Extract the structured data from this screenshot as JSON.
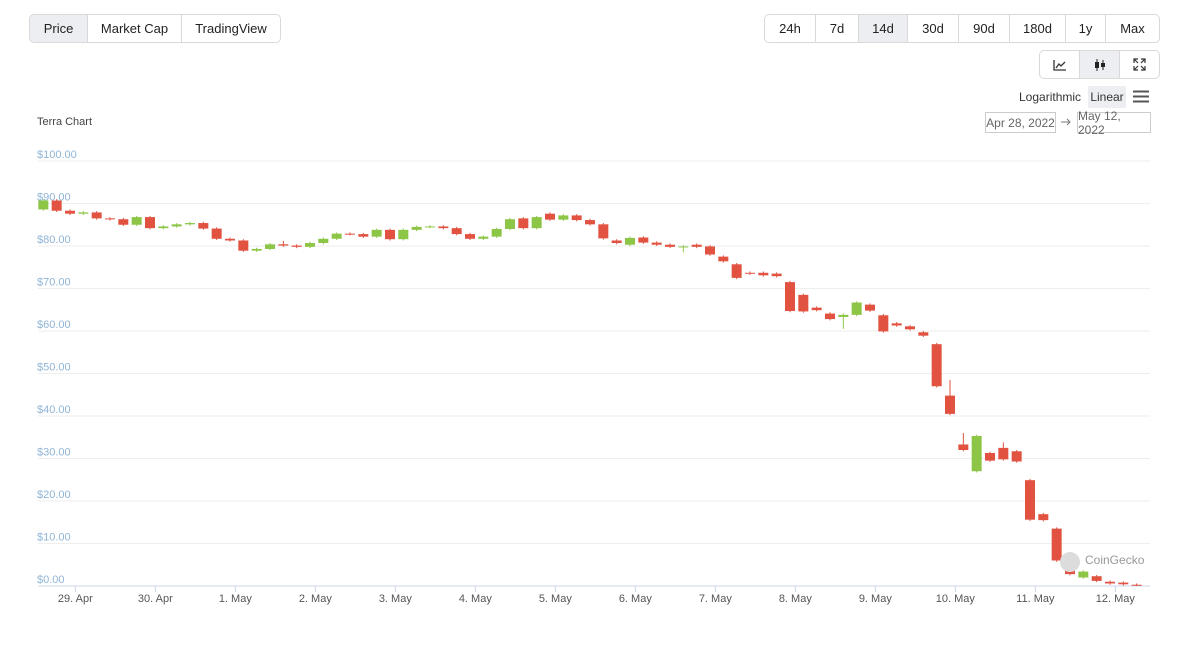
{
  "tabs": [
    "Price",
    "Market Cap",
    "TradingView"
  ],
  "active_tab": 0,
  "ranges": [
    "24h",
    "7d",
    "14d",
    "30d",
    "90d",
    "180d",
    "1y",
    "Max"
  ],
  "active_range": 2,
  "chart_style": "candlestick",
  "scales": [
    "Logarithmic",
    "Linear"
  ],
  "active_scale": 1,
  "date_from": "Apr 28, 2022",
  "date_to": "May 12, 2022",
  "watermark": "CoinGecko",
  "chart_data": {
    "type": "candlestick",
    "title": "Terra Chart",
    "up_color": "#8dc647",
    "down_color": "#e15241",
    "grid": true,
    "xlim": [
      -0.4,
      83
    ],
    "xticks": [
      {
        "value": 2.4,
        "label": "29. Apr"
      },
      {
        "value": 8.4,
        "label": "30. Apr"
      },
      {
        "value": 14.4,
        "label": "1. May"
      },
      {
        "value": 20.4,
        "label": "2. May"
      },
      {
        "value": 26.4,
        "label": "3. May"
      },
      {
        "value": 32.4,
        "label": "4. May"
      },
      {
        "value": 38.4,
        "label": "5. May"
      },
      {
        "value": 44.4,
        "label": "6. May"
      },
      {
        "value": 50.4,
        "label": "7. May"
      },
      {
        "value": 56.4,
        "label": "8. May"
      },
      {
        "value": 62.4,
        "label": "9. May"
      },
      {
        "value": 68.4,
        "label": "10. May"
      },
      {
        "value": 74.4,
        "label": "11. May"
      },
      {
        "value": 80.4,
        "label": "12. May"
      }
    ],
    "ylim": [
      0,
      100
    ],
    "yticks": [
      {
        "value": 0,
        "label": "$0.00"
      },
      {
        "value": 10,
        "label": "$10.00"
      },
      {
        "value": 20,
        "label": "$20.00"
      },
      {
        "value": 30,
        "label": "$30.00"
      },
      {
        "value": 40,
        "label": "$40.00"
      },
      {
        "value": 50,
        "label": "$50.00"
      },
      {
        "value": 60,
        "label": "$60.00"
      },
      {
        "value": 70,
        "label": "$70.00"
      },
      {
        "value": 80,
        "label": "$80.00"
      },
      {
        "value": 90,
        "label": "$90.00"
      },
      {
        "value": 100,
        "label": "$100.00"
      }
    ],
    "open": [
      88.6,
      90.7,
      88.3,
      87.6,
      87.9,
      86.5,
      86.3,
      85.0,
      86.8,
      84.2,
      84.6,
      85.1,
      85.4,
      84.1,
      81.7,
      81.3,
      78.9,
      79.3,
      80.4,
      80.1,
      79.8,
      80.7,
      81.7,
      82.9,
      82.8,
      82.2,
      83.8,
      81.6,
      83.8,
      84.5,
      84.6,
      84.2,
      82.8,
      81.7,
      82.2,
      84.0,
      86.5,
      84.2,
      87.6,
      86.2,
      87.2,
      86.1,
      85.1,
      81.3,
      80.3,
      82.0,
      80.8,
      80.3,
      79.8,
      80.3,
      79.9,
      77.5,
      75.7,
      73.7,
      73.7,
      73.5,
      71.5,
      68.5,
      65.5,
      64.1,
      63.3,
      63.8,
      66.2,
      63.7,
      61.8,
      61.1,
      59.7,
      56.9,
      44.8,
      33.3,
      27.0,
      31.3,
      32.5,
      31.7,
      24.9,
      16.9,
      13.5,
      4.4,
      2.0,
      2.3,
      1.0,
      0.8,
      0.3
    ],
    "high": [
      91.0,
      91.0,
      88.6,
      88.2,
      88.2,
      86.8,
      86.6,
      87.1,
      87.1,
      84.9,
      85.4,
      85.7,
      85.7,
      84.4,
      82.0,
      81.6,
      79.6,
      80.7,
      81.2,
      80.4,
      81.0,
      82.0,
      83.2,
      83.2,
      83.1,
      84.1,
      84.1,
      84.1,
      84.8,
      84.9,
      84.9,
      84.5,
      83.1,
      82.5,
      84.3,
      86.6,
      86.8,
      87.1,
      87.9,
      87.5,
      87.5,
      86.4,
      85.4,
      81.6,
      82.2,
      82.3,
      81.1,
      80.6,
      80.2,
      80.6,
      80.2,
      77.8,
      76.0,
      74.0,
      74.0,
      73.8,
      71.8,
      68.8,
      65.8,
      64.4,
      64.1,
      67.0,
      66.5,
      64.0,
      62.1,
      61.4,
      60.0,
      57.2,
      48.5,
      36.0,
      35.6,
      31.6,
      33.8,
      32.0,
      25.2,
      17.2,
      13.8,
      4.7,
      3.7,
      2.6,
      1.3,
      1.1,
      0.6
    ],
    "low": [
      88.3,
      88.0,
      87.3,
      87.3,
      86.2,
      86.0,
      84.7,
      84.7,
      83.9,
      83.9,
      84.3,
      84.8,
      83.8,
      81.4,
      81.0,
      78.6,
      78.6,
      79.0,
      79.8,
      79.5,
      79.5,
      80.4,
      81.4,
      82.5,
      81.9,
      81.9,
      81.3,
      81.3,
      83.5,
      84.2,
      83.9,
      82.5,
      81.4,
      81.4,
      81.9,
      83.7,
      83.9,
      83.9,
      85.9,
      85.9,
      85.8,
      84.8,
      81.5,
      80.4,
      80.0,
      80.5,
      80.0,
      79.5,
      78.5,
      79.5,
      77.7,
      76.1,
      72.2,
      73.2,
      72.8,
      72.6,
      64.4,
      64.3,
      64.6,
      62.5,
      60.5,
      63.5,
      64.5,
      59.6,
      61.0,
      60.1,
      58.6,
      46.7,
      40.2,
      31.7,
      26.7,
      29.2,
      29.5,
      29.0,
      15.3,
      15.2,
      5.7,
      2.5,
      1.7,
      0.9,
      0.3,
      0.1,
      0.0
    ],
    "close": [
      90.7,
      88.3,
      87.6,
      87.9,
      86.5,
      86.3,
      85.0,
      86.8,
      84.2,
      84.6,
      85.1,
      85.4,
      84.1,
      81.7,
      81.3,
      78.9,
      79.3,
      80.4,
      80.1,
      79.8,
      80.7,
      81.7,
      82.9,
      82.8,
      82.2,
      83.8,
      81.6,
      83.8,
      84.5,
      84.6,
      84.2,
      82.8,
      81.7,
      82.2,
      84.0,
      86.3,
      84.2,
      86.8,
      86.2,
      87.2,
      86.1,
      85.1,
      81.8,
      80.7,
      81.9,
      80.8,
      80.3,
      79.8,
      79.9,
      79.8,
      78.0,
      76.4,
      72.5,
      73.5,
      73.1,
      72.9,
      64.7,
      64.6,
      64.9,
      62.8,
      63.8,
      66.7,
      64.8,
      59.9,
      61.3,
      60.4,
      58.9,
      47.0,
      40.5,
      32.0,
      35.3,
      29.5,
      29.8,
      29.3,
      15.6,
      15.5,
      6.0,
      2.8,
      3.4,
      1.2,
      0.6,
      0.4,
      0.1
    ]
  }
}
